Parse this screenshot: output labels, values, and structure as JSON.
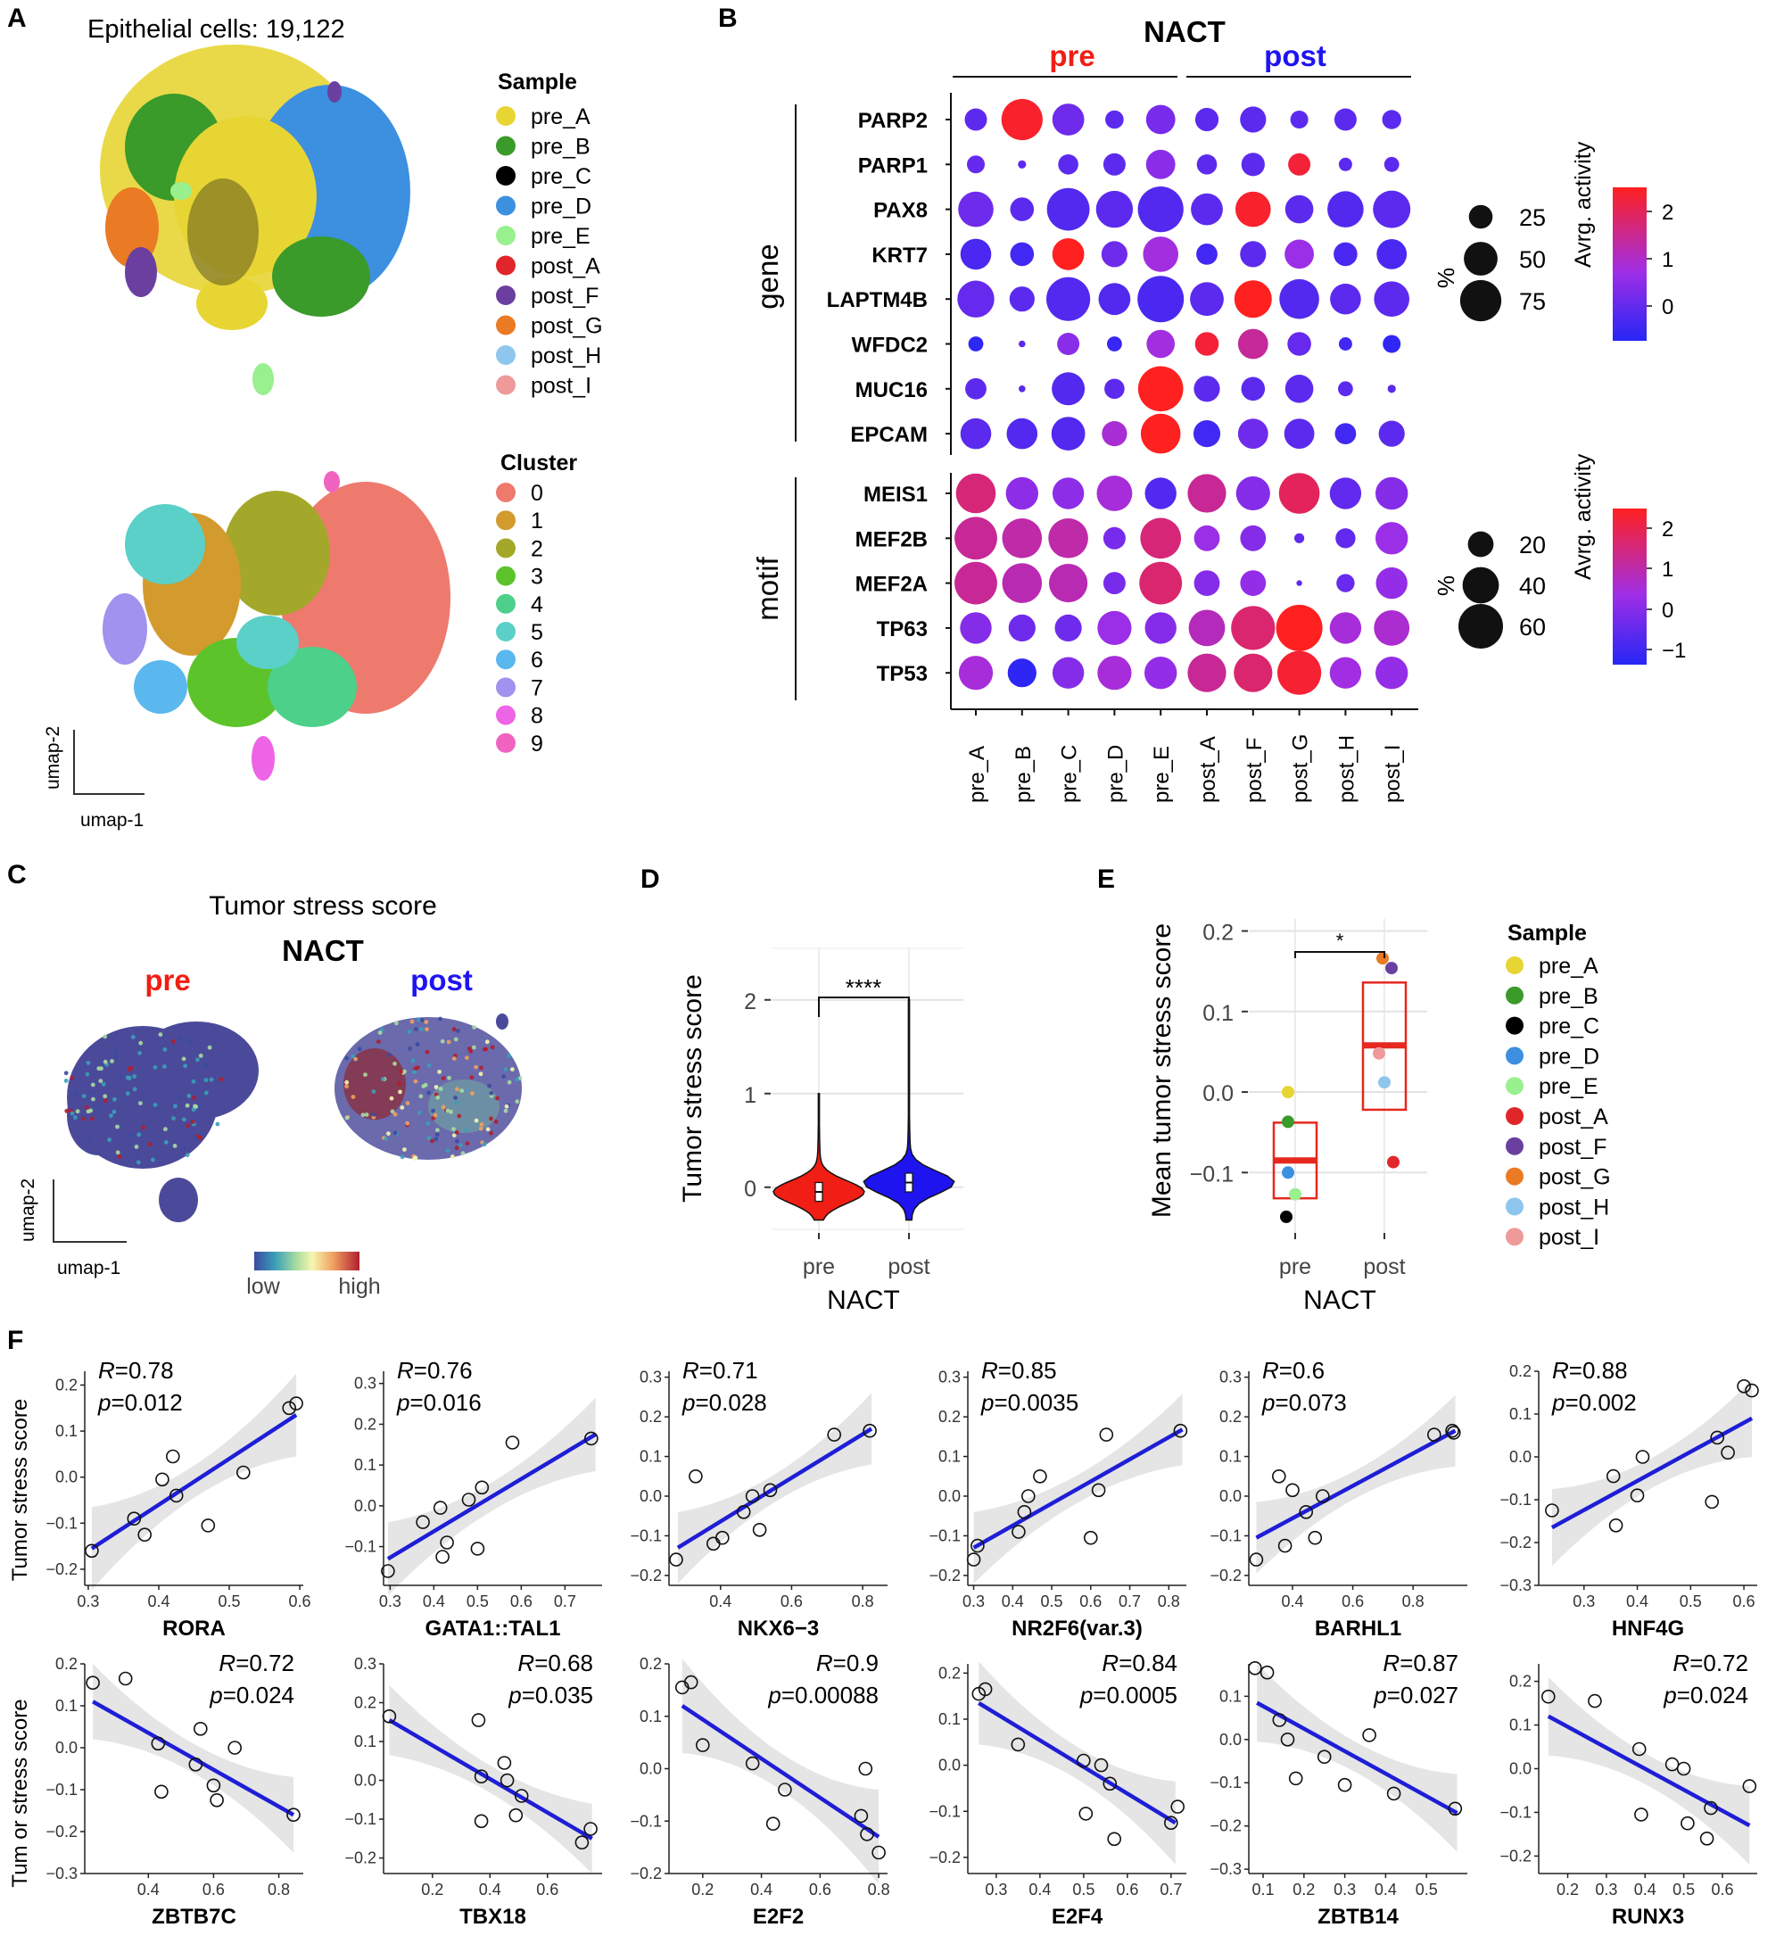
{
  "panels": {
    "A": {
      "letter": "A",
      "title": "Epithelial cells: 19,122",
      "sample_legend_title": "Sample",
      "samples": [
        "pre_A",
        "pre_B",
        "pre_C",
        "pre_D",
        "pre_E",
        "post_A",
        "post_F",
        "post_G",
        "post_H",
        "post_I"
      ],
      "sample_colors": [
        "#e7d534",
        "#3a9a2a",
        "#000000",
        "#3d8fe0",
        "#98f08e",
        "#e0262a",
        "#6a3fa0",
        "#ea7a24",
        "#8fc6ee",
        "#ee9a9a"
      ],
      "cluster_legend_title": "Cluster",
      "clusters": [
        "0",
        "1",
        "2",
        "3",
        "4",
        "5",
        "6",
        "7",
        "8",
        "9"
      ],
      "cluster_colors": [
        "#ee7a6e",
        "#d39a2e",
        "#a4a82a",
        "#5cc42a",
        "#4cd08a",
        "#5ad0c8",
        "#5ab8ee",
        "#a092ee",
        "#ee64e6",
        "#f064c0"
      ],
      "axis_x": "umap-1",
      "axis_y": "umap-2"
    },
    "B": {
      "letter": "B",
      "title": "NACT",
      "group_pre": "pre",
      "group_post": "post",
      "gene_group_label": "gene",
      "motif_group_label": "motif",
      "size_legend_title": "%",
      "color_legend_title": "Avrg. activity",
      "gene_size_ticks": [
        "25",
        "50",
        "75"
      ],
      "motif_size_ticks": [
        "20",
        "40",
        "60"
      ],
      "gene_color_ticks": [
        "2",
        "1",
        "0"
      ],
      "motif_color_ticks": [
        "2",
        "1",
        "0",
        "−1"
      ]
    },
    "C": {
      "letter": "C",
      "title": "Tumor stress score",
      "subtitle": "NACT",
      "pre_label": "pre",
      "post_label": "post",
      "axis_x": "umap-1",
      "axis_y": "umap-2",
      "scale_low": "low",
      "scale_high": "high"
    },
    "D": {
      "letter": "D",
      "ylabel": "Tumor stress score",
      "xlabel": "NACT",
      "significance": "****"
    },
    "E": {
      "letter": "E",
      "ylabel": "Mean tumor stress score",
      "xlabel": "NACT",
      "significance": "*",
      "legend_title": "Sample"
    },
    "F": {
      "letter": "F",
      "ylabel_row1": "Tumor stress score",
      "ylabel_row2": "Tum or stress score"
    }
  },
  "chart_data": [
    {
      "id": "B_dotplot",
      "type": "scatter",
      "x": [
        "pre_A",
        "pre_B",
        "pre_C",
        "pre_D",
        "pre_E",
        "post_A",
        "post_F",
        "post_G",
        "post_H",
        "post_I"
      ],
      "gene_rows": [
        "PARP2",
        "PARP1",
        "PAX8",
        "KRT7",
        "LAPTM4B",
        "WFDC2",
        "MUC16",
        "EPCAM"
      ],
      "gene_pct": [
        [
          22,
          75,
          45,
          15,
          38,
          24,
          30,
          14,
          22,
          16
        ],
        [
          14,
          3,
          18,
          22,
          38,
          18,
          24,
          22,
          8,
          10
        ],
        [
          55,
          25,
          80,
          60,
          92,
          45,
          55,
          35,
          58,
          62
        ],
        [
          42,
          25,
          45,
          30,
          55,
          20,
          30,
          38,
          25,
          40
        ],
        [
          60,
          28,
          85,
          45,
          95,
          50,
          62,
          70,
          42,
          55
        ],
        [
          10,
          2,
          22,
          10,
          35,
          25,
          40,
          25,
          8,
          14
        ],
        [
          20,
          2,
          48,
          18,
          90,
          30,
          25,
          35,
          10,
          3
        ],
        [
          42,
          42,
          50,
          28,
          70,
          32,
          40,
          40,
          20,
          30
        ]
      ],
      "gene_activity": [
        [
          0.0,
          2.3,
          0.2,
          0.0,
          0.3,
          0.0,
          0.0,
          0.0,
          0.0,
          0.0
        ],
        [
          0.1,
          0.0,
          0.0,
          0.0,
          0.5,
          0.0,
          0.0,
          2.2,
          0.0,
          0.0
        ],
        [
          0.2,
          0.0,
          -0.1,
          0.0,
          -0.1,
          0.0,
          2.3,
          0.0,
          -0.1,
          0.0
        ],
        [
          -0.2,
          -0.3,
          2.4,
          0.2,
          0.8,
          -0.3,
          0.0,
          0.7,
          -0.2,
          -0.2
        ],
        [
          0.1,
          0.0,
          -0.1,
          -0.1,
          -0.2,
          0.0,
          2.4,
          -0.1,
          0.0,
          0.0
        ],
        [
          -0.5,
          0.0,
          0.5,
          -0.4,
          0.8,
          2.2,
          1.4,
          0.1,
          -0.3,
          -0.5
        ],
        [
          0.0,
          0.0,
          -0.1,
          0.0,
          2.4,
          0.0,
          0.0,
          0.0,
          0.0,
          0.0
        ],
        [
          0.0,
          -0.1,
          -0.1,
          0.9,
          2.4,
          -0.3,
          0.2,
          0.0,
          -0.3,
          0.0
        ]
      ],
      "motif_rows": [
        "MEIS1",
        "MEF2B",
        "MEF2A",
        "TP63",
        "TP53"
      ],
      "motif_pct": [
        [
          48,
          32,
          30,
          38,
          30,
          45,
          35,
          50,
          30,
          32
        ],
        [
          55,
          48,
          48,
          15,
          50,
          20,
          20,
          3,
          12,
          32
        ],
        [
          55,
          48,
          45,
          15,
          55,
          20,
          20,
          1,
          10,
          30
        ],
        [
          30,
          22,
          22,
          35,
          30,
          40,
          58,
          65,
          30,
          38
        ],
        [
          35,
          25,
          30,
          35,
          32,
          45,
          45,
          58,
          30,
          32
        ]
      ],
      "motif_activity": [
        [
          1.5,
          0.1,
          0.1,
          0.5,
          -0.7,
          1.2,
          0.0,
          1.8,
          -0.5,
          0.0
        ],
        [
          1.2,
          1.0,
          1.0,
          -0.2,
          1.5,
          0.3,
          0.0,
          -0.5,
          -0.5,
          0.3
        ],
        [
          1.2,
          0.9,
          0.9,
          -0.2,
          1.6,
          0.0,
          0.2,
          -0.5,
          -0.4,
          0.2
        ],
        [
          0.0,
          -0.3,
          -0.3,
          0.3,
          0.0,
          0.8,
          1.6,
          2.4,
          0.5,
          0.6
        ],
        [
          0.5,
          -1.2,
          0.0,
          0.5,
          0.2,
          1.2,
          1.6,
          2.2,
          0.4,
          0.2
        ]
      ]
    },
    {
      "id": "D_violin",
      "type": "violin",
      "categories": [
        "pre",
        "post"
      ],
      "colors": [
        "#f01e14",
        "#1e14f0"
      ],
      "medians": [
        -0.05,
        0.05
      ],
      "y_ticks": [
        0,
        1,
        2
      ],
      "ylim": [
        -0.45,
        2.55
      ]
    },
    {
      "id": "E_box",
      "type": "scatter",
      "categories": [
        "pre",
        "post"
      ],
      "y_ticks": [
        -0.1,
        0.0,
        0.1,
        0.2
      ],
      "ylim": [
        -0.175,
        0.215
      ],
      "boxes": [
        {
          "q1": -0.132,
          "median": -0.085,
          "q3": -0.038
        },
        {
          "q1": -0.022,
          "median": 0.058,
          "q3": 0.136
        }
      ],
      "points": [
        {
          "sample": "pre_A",
          "group": "pre",
          "y": 0.0
        },
        {
          "sample": "pre_B",
          "group": "pre",
          "y": -0.037
        },
        {
          "sample": "pre_C",
          "group": "pre",
          "y": -0.155
        },
        {
          "sample": "pre_D",
          "group": "pre",
          "y": -0.1
        },
        {
          "sample": "pre_E",
          "group": "pre",
          "y": -0.127
        },
        {
          "sample": "post_A",
          "group": "post",
          "y": -0.087
        },
        {
          "sample": "post_F",
          "group": "post",
          "y": 0.154
        },
        {
          "sample": "post_G",
          "group": "post",
          "y": 0.166
        },
        {
          "sample": "post_H",
          "group": "post",
          "y": 0.012
        },
        {
          "sample": "post_I",
          "group": "post",
          "y": 0.048
        }
      ]
    },
    {
      "id": "F_scatter_RORA",
      "type": "scatter",
      "xlabel": "RORA",
      "R": "=0.78",
      "p": "=0.012",
      "x_ticks": [
        0.3,
        0.4,
        0.5,
        0.6
      ],
      "y_ticks": [
        -0.2,
        -0.1,
        0.0,
        0.1,
        0.2
      ],
      "xlim": [
        0.295,
        0.605
      ],
      "ylim": [
        -0.235,
        0.23
      ],
      "x": [
        0.305,
        0.365,
        0.38,
        0.405,
        0.42,
        0.425,
        0.47,
        0.52,
        0.585,
        0.595
      ],
      "y": [
        -0.16,
        -0.09,
        -0.125,
        -0.005,
        0.045,
        -0.04,
        -0.105,
        0.01,
        0.15,
        0.16
      ],
      "fit": [
        [
          0.305,
          -0.155
        ],
        [
          0.595,
          0.135
        ]
      ]
    },
    {
      "id": "F_scatter_GATA1_TAL1",
      "type": "scatter",
      "xlabel": "GATA1::TAL1",
      "R": "=0.76",
      "p": "=0.016",
      "x_ticks": [
        0.3,
        0.4,
        0.5,
        0.6,
        0.7
      ],
      "y_ticks": [
        -0.1,
        0.0,
        0.1,
        0.2,
        0.3
      ],
      "xlim": [
        0.285,
        0.785
      ],
      "ylim": [
        -0.195,
        0.33
      ],
      "x": [
        0.295,
        0.375,
        0.415,
        0.42,
        0.43,
        0.48,
        0.5,
        0.51,
        0.58,
        0.76
      ],
      "y": [
        -0.16,
        -0.04,
        -0.005,
        -0.125,
        -0.09,
        0.015,
        -0.105,
        0.045,
        0.155,
        0.165
      ],
      "fit": [
        [
          0.295,
          -0.13
        ],
        [
          0.77,
          0.175
        ]
      ]
    },
    {
      "id": "F_scatter_NKX6_3",
      "type": "scatter",
      "xlabel": "NKX6−3",
      "R": "=0.71",
      "p": "=0.028",
      "x_ticks": [
        0.4,
        0.6,
        0.8
      ],
      "y_ticks": [
        -0.2,
        -0.1,
        0.0,
        0.1,
        0.2,
        0.3
      ],
      "xlim": [
        0.255,
        0.87
      ],
      "ylim": [
        -0.225,
        0.315
      ],
      "x": [
        0.275,
        0.33,
        0.38,
        0.405,
        0.465,
        0.49,
        0.51,
        0.54,
        0.72,
        0.82
      ],
      "y": [
        -0.16,
        0.05,
        -0.12,
        -0.105,
        -0.04,
        0.0,
        -0.085,
        0.015,
        0.155,
        0.165
      ],
      "fit": [
        [
          0.28,
          -0.13
        ],
        [
          0.825,
          0.17
        ]
      ]
    },
    {
      "id": "F_scatter_NR2F6",
      "type": "scatter",
      "xlabel": "NR2F6(var.3)",
      "R": "=0.85",
      "p": "=0.0035",
      "x_ticks": [
        0.3,
        0.4,
        0.5,
        0.6,
        0.7,
        0.8
      ],
      "y_ticks": [
        -0.2,
        -0.1,
        0.0,
        0.1,
        0.2,
        0.3
      ],
      "xlim": [
        0.285,
        0.845
      ],
      "ylim": [
        -0.225,
        0.315
      ],
      "x": [
        0.3,
        0.31,
        0.415,
        0.43,
        0.44,
        0.47,
        0.6,
        0.62,
        0.64,
        0.83
      ],
      "y": [
        -0.16,
        -0.125,
        -0.09,
        -0.04,
        0.0,
        0.05,
        -0.105,
        0.015,
        0.155,
        0.165
      ],
      "fit": [
        [
          0.3,
          -0.13
        ],
        [
          0.835,
          0.168
        ]
      ]
    },
    {
      "id": "F_scatter_BARHL1",
      "type": "scatter",
      "xlabel": "BARHL1",
      "R": "=0.6",
      "p": "=0.073",
      "x_ticks": [
        0.4,
        0.6,
        0.8
      ],
      "y_ticks": [
        -0.2,
        -0.1,
        0.0,
        0.1,
        0.2,
        0.3
      ],
      "xlim": [
        0.255,
        0.98
      ],
      "ylim": [
        -0.225,
        0.315
      ],
      "x": [
        0.28,
        0.355,
        0.375,
        0.4,
        0.445,
        0.475,
        0.5,
        0.87,
        0.93,
        0.935
      ],
      "y": [
        -0.16,
        0.05,
        -0.125,
        0.015,
        -0.04,
        -0.105,
        0.0,
        0.155,
        0.165,
        0.16
      ],
      "fit": [
        [
          0.28,
          -0.105
        ],
        [
          0.94,
          0.165
        ]
      ]
    },
    {
      "id": "F_scatter_HNF4G",
      "type": "scatter",
      "xlabel": "HNF4G",
      "R": "=0.88",
      "p": "=0.002",
      "x_ticks": [
        0.3,
        0.4,
        0.5,
        0.6
      ],
      "y_ticks": [
        -0.3,
        -0.2,
        -0.1,
        0.0,
        0.1,
        0.2
      ],
      "xlim": [
        0.215,
        0.625
      ],
      "ylim": [
        -0.3,
        0.2
      ],
      "x": [
        0.24,
        0.355,
        0.36,
        0.4,
        0.41,
        0.54,
        0.55,
        0.57,
        0.6,
        0.615
      ],
      "y": [
        -0.125,
        -0.045,
        -0.16,
        -0.09,
        0.0,
        -0.105,
        0.045,
        0.01,
        0.165,
        0.155
      ],
      "fit": [
        [
          0.24,
          -0.165
        ],
        [
          0.615,
          0.09
        ]
      ]
    },
    {
      "id": "F_scatter_ZBTB7C",
      "type": "scatter",
      "xlabel": "ZBTB7C",
      "R": "=0.72",
      "p": "=0.024",
      "x_ticks": [
        0.4,
        0.6,
        0.8
      ],
      "y_ticks": [
        -0.3,
        -0.2,
        -0.1,
        0.0,
        0.1,
        0.2
      ],
      "xlim": [
        0.205,
        0.875
      ],
      "ylim": [
        -0.3,
        0.2
      ],
      "x": [
        0.23,
        0.33,
        0.43,
        0.44,
        0.545,
        0.56,
        0.6,
        0.61,
        0.665,
        0.845
      ],
      "y": [
        0.155,
        0.165,
        0.01,
        -0.105,
        -0.04,
        0.045,
        -0.09,
        -0.125,
        0.0,
        -0.16
      ],
      "fit": [
        [
          0.23,
          0.11
        ],
        [
          0.845,
          -0.16
        ]
      ]
    },
    {
      "id": "F_scatter_TBX18",
      "type": "scatter",
      "xlabel": "TBX18",
      "R": "=0.68",
      "p": "=0.035",
      "x_ticks": [
        0.2,
        0.4,
        0.6
      ],
      "y_ticks": [
        -0.2,
        -0.1,
        0.0,
        0.1,
        0.2,
        0.3
      ],
      "xlim": [
        0.03,
        0.79
      ],
      "ylim": [
        -0.24,
        0.3
      ],
      "x": [
        0.05,
        0.36,
        0.37,
        0.37,
        0.45,
        0.46,
        0.49,
        0.51,
        0.72,
        0.75
      ],
      "y": [
        0.165,
        0.155,
        0.01,
        -0.105,
        0.045,
        0.0,
        -0.09,
        -0.04,
        -0.16,
        -0.125
      ],
      "fit": [
        [
          0.05,
          0.155
        ],
        [
          0.755,
          -0.15
        ]
      ]
    },
    {
      "id": "F_scatter_E2F2",
      "type": "scatter",
      "xlabel": "E2F2",
      "R": "=0.9",
      "p": "=0.00088",
      "x_ticks": [
        0.2,
        0.4,
        0.6,
        0.8
      ],
      "y_ticks": [
        -0.2,
        -0.1,
        0.0,
        0.1,
        0.2
      ],
      "xlim": [
        0.085,
        0.83
      ],
      "ylim": [
        -0.2,
        0.2
      ],
      "x": [
        0.13,
        0.16,
        0.2,
        0.37,
        0.44,
        0.48,
        0.74,
        0.755,
        0.76,
        0.8
      ],
      "y": [
        0.155,
        0.165,
        0.045,
        0.01,
        -0.105,
        -0.04,
        -0.09,
        0.0,
        -0.125,
        -0.16
      ],
      "fit": [
        [
          0.13,
          0.12
        ],
        [
          0.8,
          -0.13
        ]
      ]
    },
    {
      "id": "F_scatter_E2F4",
      "type": "scatter",
      "xlabel": "E2F4",
      "R": "=0.84",
      "p": "=0.0005",
      "x_ticks": [
        0.3,
        0.4,
        0.5,
        0.6,
        0.7
      ],
      "y_ticks": [
        -0.2,
        -0.1,
        0.0,
        0.1,
        0.2
      ],
      "xlim": [
        0.235,
        0.735
      ],
      "ylim": [
        -0.235,
        0.22
      ],
      "x": [
        0.26,
        0.275,
        0.35,
        0.5,
        0.505,
        0.54,
        0.56,
        0.57,
        0.7,
        0.715
      ],
      "y": [
        0.155,
        0.165,
        0.045,
        0.01,
        -0.105,
        0.0,
        -0.04,
        -0.16,
        -0.125,
        -0.09
      ],
      "fit": [
        [
          0.26,
          0.135
        ],
        [
          0.71,
          -0.125
        ]
      ]
    },
    {
      "id": "F_scatter_ZBTB14",
      "type": "scatter",
      "xlabel": "ZBTB14",
      "R": "=0.87",
      "p": "=0.027",
      "x_ticks": [
        0.1,
        0.2,
        0.3,
        0.4,
        0.5
      ],
      "y_ticks": [
        -0.3,
        -0.2,
        -0.1,
        0.0,
        0.1
      ],
      "xlim": [
        0.065,
        0.6
      ],
      "ylim": [
        -0.31,
        0.175
      ],
      "x": [
        0.08,
        0.11,
        0.14,
        0.16,
        0.18,
        0.25,
        0.3,
        0.36,
        0.42,
        0.57
      ],
      "y": [
        0.165,
        0.155,
        0.045,
        0.0,
        -0.09,
        -0.04,
        -0.105,
        0.01,
        -0.125,
        -0.16
      ],
      "fit": [
        [
          0.085,
          0.085
        ],
        [
          0.575,
          -0.17
        ]
      ]
    },
    {
      "id": "F_scatter_RUNX3",
      "type": "scatter",
      "xlabel": "RUNX3",
      "R": "=0.72",
      "p": "=0.024",
      "x_ticks": [
        0.2,
        0.3,
        0.4,
        0.5,
        0.6
      ],
      "y_ticks": [
        -0.2,
        -0.1,
        0.0,
        0.1,
        0.2
      ],
      "xlim": [
        0.125,
        0.69
      ],
      "ylim": [
        -0.24,
        0.24
      ],
      "x": [
        0.15,
        0.27,
        0.385,
        0.39,
        0.47,
        0.5,
        0.51,
        0.56,
        0.57,
        0.67
      ],
      "y": [
        0.165,
        0.155,
        0.045,
        -0.105,
        0.01,
        0.0,
        -0.125,
        -0.16,
        -0.09,
        -0.04
      ],
      "fit": [
        [
          0.15,
          0.12
        ],
        [
          0.67,
          -0.13
        ]
      ]
    }
  ]
}
